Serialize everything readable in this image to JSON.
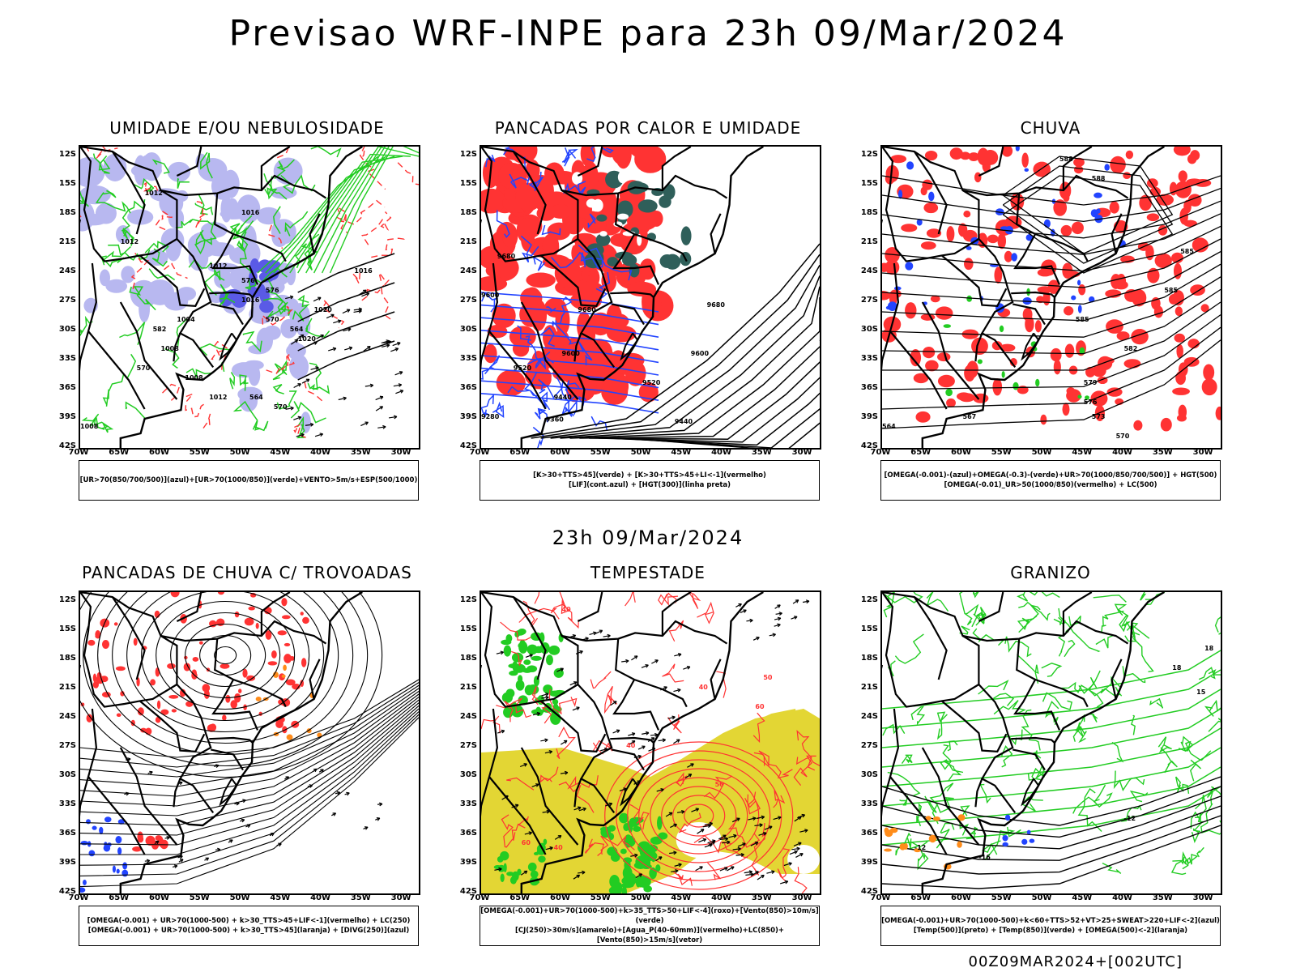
{
  "header": {
    "title": "Previsao WRF-INPE  para 23h 09/Mar/2024",
    "mid_title": "23h 09/Mar/2024",
    "footer": "00Z09MAR2024+[002UTC]"
  },
  "axes": {
    "lat_labels": [
      "12S",
      "15S",
      "18S",
      "21S",
      "24S",
      "27S",
      "30S",
      "33S",
      "36S",
      "39S",
      "42S"
    ],
    "lon_labels": [
      "70W",
      "65W",
      "60W",
      "55W",
      "50W",
      "45W",
      "40W",
      "35W",
      "30W"
    ]
  },
  "panels": [
    {
      "title": "UMIDADE E/OU NEBULOSIDADE",
      "legend": [
        "[UR>70(850/700/500)](azul)+[UR>70(1000/850)](verde)+VENTO>5m/s+ESP(500/1000)"
      ],
      "contour_labels": [
        "1012",
        "1012",
        "1016",
        "1016",
        "1012",
        "1016",
        "1008",
        "1004",
        "1008",
        "1012",
        "1020",
        "1020",
        "1008",
        "576",
        "576",
        "570",
        "582",
        "570",
        "564",
        "564",
        "570"
      ]
    },
    {
      "title": "PANCADAS POR CALOR E UMIDADE",
      "legend": [
        "[K>30+TTS>45](verde) + [K>30+TTS>45+LI<-1](vermelho)",
        "[LIF](cont.azul) + [HGT(300)](linha preta)"
      ],
      "contour_labels": [
        "9680",
        "9600",
        "9680",
        "9680",
        "9600",
        "9600",
        "9520",
        "9520",
        "9440",
        "9280",
        "9360",
        "9440"
      ]
    },
    {
      "title": "CHUVA",
      "legend": [
        "[OMEGA(-0.001)-(azul)+OMEGA(-0.3)-(verde)+UR>70(1000/850/700/500)] + HGT(500)",
        "[OMEGA(-0.01)_UR>50(1000/850)(vermelho) + LC(500)"
      ],
      "contour_labels": [
        "588",
        "588",
        "585",
        "585",
        "585",
        "582",
        "579",
        "576",
        "573",
        "570",
        "567",
        "564"
      ]
    },
    {
      "title": "PANCADAS DE CHUVA C/ TROVOADAS",
      "legend": [
        "[OMEGA(-0.001) + UR>70(1000-500) + k>30_TTS>45+LIF<-1](vermelho) + LC(250)",
        "[OMEGA(-0.001) + UR>70(1000-500) + k>30_TTS>45](laranja) + [DIVG(250)](azul)"
      ],
      "contour_labels": []
    },
    {
      "title": "TEMPESTADE",
      "legend": [
        "[OMEGA(-0.001)+UR>70(1000-500)+k>35_TTS>50+LIF<-4](roxo)+[Vento(850)>10m/s](verde)",
        "[CJ(250)>30m/s](amarelo)+[Agua_P(40-60mm)](vermelho)+LC(850)+[Vento(850)>15m/s](vetor)"
      ],
      "contour_labels": [
        "40",
        "40",
        "50",
        "60",
        "50",
        "40",
        "60",
        "40"
      ]
    },
    {
      "title": "GRANIZO",
      "legend": [
        "[OMEGA(-0.001)+UR>70(1000-500)+k<60+TTS>52+VT>25+SWEAT>220+LIF<-2](azul)",
        "[Temp(500)](preto) + [Temp(850)](verde) + [OMEGA(500)<-2](laranja)"
      ],
      "contour_labels": [
        "-12",
        "-16",
        "-12",
        "18",
        "15",
        "18"
      ]
    }
  ],
  "colors": {
    "black": "#000000",
    "green": "#22cc22",
    "red": "#ff3333",
    "blue": "#2244ff",
    "lavender": "#b8b8f0",
    "darkteal": "#2f5f5a",
    "yellow": "#e3d634",
    "orange": "#ff8c1a"
  }
}
